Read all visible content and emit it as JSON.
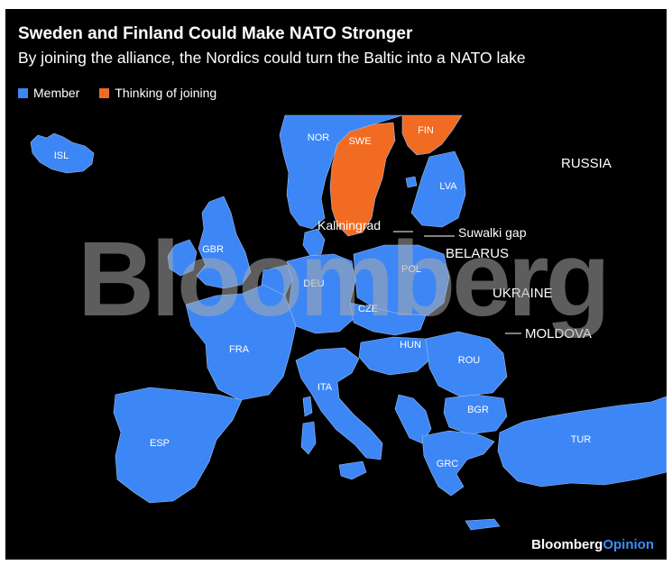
{
  "header": {
    "title": "Sweden and Finland Could Make NATO Stronger",
    "subtitle": "By joining the alliance, the Nordics could turn the Baltic into a NATO lake"
  },
  "legend": {
    "member": "Member",
    "thinking": "Thinking of joining"
  },
  "colors": {
    "background": "#000000",
    "member": "#3d86f5",
    "thinking": "#f26b22",
    "non_member": "#000000",
    "border": "#9fbff0"
  },
  "map": {
    "country_labels": {
      "isl": "ISL",
      "nor": "NOR",
      "swe": "SWE",
      "fin": "FIN",
      "lva": "LVA",
      "gbr": "GBR",
      "deu": "DEU",
      "pol": "POL",
      "cze": "CZE",
      "fra": "FRA",
      "hun": "HUN",
      "rou": "ROU",
      "ita": "ITA",
      "bgr": "BGR",
      "esp": "ESP",
      "grc": "GRC",
      "tur": "TUR"
    },
    "region_labels": {
      "russia": "RUSSIA",
      "kaliningrad": "Kaliningrad",
      "suwalki": "Suwalki gap",
      "belarus": "BELARUS",
      "ukraine": "UKRAINE",
      "moldova": "MOLDOVA"
    }
  },
  "watermark": "Bloomberg",
  "branding": {
    "bloomberg": "Bloomberg",
    "opinion": "Opinion"
  }
}
